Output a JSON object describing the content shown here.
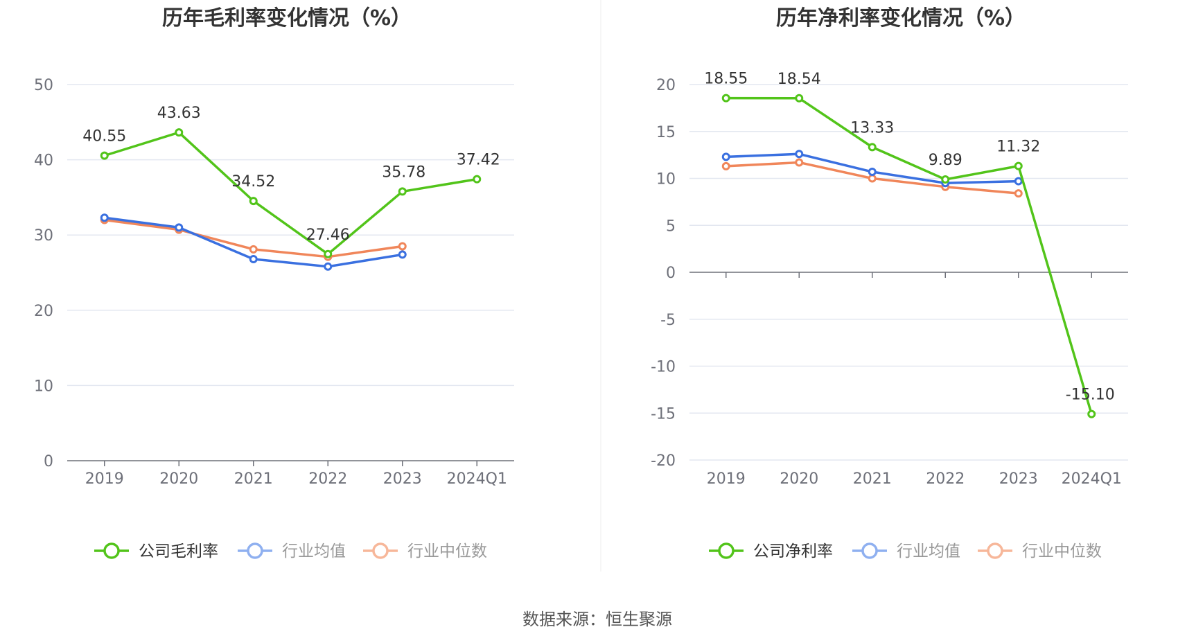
{
  "source": "数据来源：恒生聚源",
  "colors": {
    "company": "#52c41a",
    "industry_avg": "#3a70e0",
    "industry_median": "#f0865a",
    "legend_avg": "#8fb0f0",
    "legend_median": "#f7b79a",
    "grid": "#e3e7f0",
    "axis": "#6e7079"
  },
  "chart_data": [
    {
      "type": "line",
      "title": "历年毛利率变化情况（%）",
      "categories": [
        "2019",
        "2020",
        "2021",
        "2022",
        "2023",
        "2024Q1"
      ],
      "ylim": [
        0,
        50
      ],
      "yticks": [
        0,
        10,
        20,
        30,
        40,
        50
      ],
      "grid": true,
      "legend_position": "bottom",
      "series": [
        {
          "name": "公司毛利率",
          "values": [
            40.55,
            43.63,
            34.52,
            27.46,
            35.78,
            37.42
          ],
          "labels": [
            "40.55",
            "43.63",
            "34.52",
            "27.46",
            "35.78",
            "37.42"
          ]
        },
        {
          "name": "行业均值",
          "values": [
            32.3,
            31.0,
            26.8,
            25.8,
            27.4,
            null
          ]
        },
        {
          "name": "行业中位数",
          "values": [
            32.0,
            30.7,
            28.1,
            27.1,
            28.5,
            null
          ]
        }
      ]
    },
    {
      "type": "line",
      "title": "历年净利率变化情况（%）",
      "categories": [
        "2019",
        "2020",
        "2021",
        "2022",
        "2023",
        "2024Q1"
      ],
      "ylim": [
        -20,
        20
      ],
      "yticks": [
        -20,
        -15,
        -10,
        -5,
        0,
        5,
        10,
        15,
        20
      ],
      "grid": true,
      "legend_position": "bottom",
      "series": [
        {
          "name": "公司净利率",
          "values": [
            18.55,
            18.54,
            13.33,
            9.89,
            11.32,
            -15.1
          ],
          "labels": [
            "18.55",
            "18.54",
            "13.33",
            "9.89",
            "11.32",
            "-15.10"
          ]
        },
        {
          "name": "行业均值",
          "values": [
            12.3,
            12.6,
            10.7,
            9.5,
            9.7,
            null
          ]
        },
        {
          "name": "行业中位数",
          "values": [
            11.3,
            11.7,
            10.0,
            9.1,
            8.4,
            null
          ]
        }
      ]
    }
  ]
}
